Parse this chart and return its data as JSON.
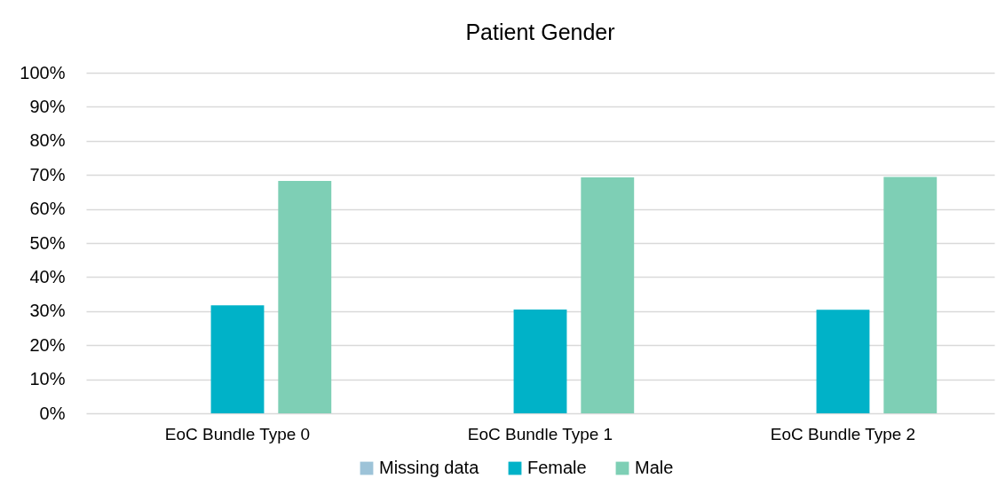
{
  "chart_data": {
    "type": "bar",
    "title": "Patient Gender",
    "categories": [
      "EoC Bundle Type 0",
      "EoC Bundle Type 1",
      "EoC Bundle Type 2"
    ],
    "series": [
      {
        "name": "Missing data",
        "color": "#9dc3d8",
        "values": [
          0,
          0,
          0
        ]
      },
      {
        "name": "Female",
        "color": "#00b2c8",
        "values": [
          31.7,
          30.5,
          30.4
        ]
      },
      {
        "name": "Male",
        "color": "#7ecfb5",
        "values": [
          68.2,
          69.3,
          69.4
        ]
      }
    ],
    "ylim": [
      0,
      100
    ],
    "yticks": [
      {
        "value": 0,
        "label": "0%"
      },
      {
        "value": 10,
        "label": "10%"
      },
      {
        "value": 20,
        "label": "20%"
      },
      {
        "value": 30,
        "label": "30%"
      },
      {
        "value": 40,
        "label": "40%"
      },
      {
        "value": 50,
        "label": "50%"
      },
      {
        "value": 60,
        "label": "60%"
      },
      {
        "value": 70,
        "label": "70%"
      },
      {
        "value": 80,
        "label": "80%"
      },
      {
        "value": 90,
        "label": "90%"
      },
      {
        "value": 100,
        "label": "100%"
      }
    ],
    "grid": "y",
    "legend": "bottom"
  }
}
